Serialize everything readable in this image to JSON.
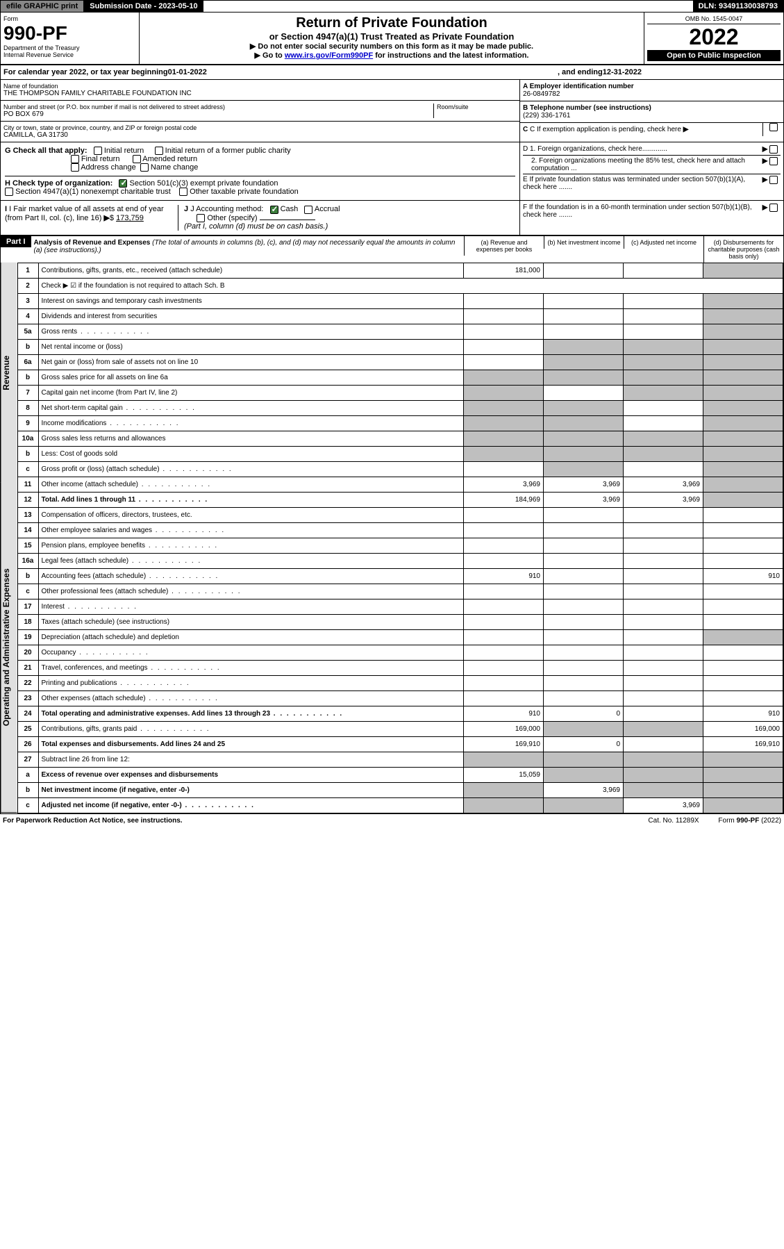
{
  "topbar": {
    "efile": "efile GRAPHIC print",
    "submission": "Submission Date - 2023-05-10",
    "dln": "DLN: 93491130038793"
  },
  "header": {
    "form_label": "Form",
    "form_no": "990-PF",
    "dept": "Department of the Treasury",
    "irs": "Internal Revenue Service",
    "title": "Return of Private Foundation",
    "subtitle": "or Section 4947(a)(1) Trust Treated as Private Foundation",
    "instr1": "▶ Do not enter social security numbers on this form as it may be made public.",
    "instr2_pre": "▶ Go to ",
    "instr2_link": "www.irs.gov/Form990PF",
    "instr2_post": " for instructions and the latest information.",
    "omb": "OMB No. 1545-0047",
    "year": "2022",
    "inspection": "Open to Public Inspection"
  },
  "calendar": {
    "text_pre": "For calendar year 2022, or tax year beginning ",
    "begin": "01-01-2022",
    "mid": ", and ending ",
    "end": "12-31-2022"
  },
  "entity": {
    "name_label": "Name of foundation",
    "name": "THE THOMPSON FAMILY CHARITABLE FOUNDATION INC",
    "addr_label": "Number and street (or P.O. box number if mail is not delivered to street address)",
    "addr": "PO BOX 679",
    "room_label": "Room/suite",
    "city_label": "City or town, state or province, country, and ZIP or foreign postal code",
    "city": "CAMILLA, GA  31730",
    "ein_label": "A Employer identification number",
    "ein": "26-0849782",
    "phone_label": "B Telephone number (see instructions)",
    "phone": "(229) 336-1761",
    "c_label": "C If exemption application is pending, check here",
    "d1_label": "D 1. Foreign organizations, check here.............",
    "d2_label": "2. Foreign organizations meeting the 85% test, check here and attach computation ...",
    "e_label": "E  If private foundation status was terminated under section 507(b)(1)(A), check here .......",
    "f_label": "F  If the foundation is in a 60-month termination under section 507(b)(1)(B), check here .......",
    "g_label": "G Check all that apply:",
    "g_opts": [
      "Initial return",
      "Initial return of a former public charity",
      "Final return",
      "Amended return",
      "Address change",
      "Name change"
    ],
    "h_label": "H Check type of organization:",
    "h_opt1": "Section 501(c)(3) exempt private foundation",
    "h_opt2": "Section 4947(a)(1) nonexempt charitable trust",
    "h_opt3": "Other taxable private foundation",
    "i_label": "I Fair market value of all assets at end of year (from Part II, col. (c), line 16)",
    "i_value": "173,759",
    "j_label": "J Accounting method:",
    "j_cash": "Cash",
    "j_accrual": "Accrual",
    "j_other": "Other (specify)",
    "j_note": "(Part I, column (d) must be on cash basis.)"
  },
  "part1": {
    "label": "Part I",
    "title": "Analysis of Revenue and Expenses",
    "desc": " (The total of amounts in columns (b), (c), and (d) may not necessarily equal the amounts in column (a) (see instructions).)",
    "col_a": "(a)   Revenue and expenses per books",
    "col_b": "(b)   Net investment income",
    "col_c": "(c)   Adjusted net income",
    "col_d": "(d)   Disbursements for charitable purposes (cash basis only)"
  },
  "vert": {
    "revenue": "Revenue",
    "expenses": "Operating and Administrative Expenses"
  },
  "rows": [
    {
      "n": "1",
      "label": "Contributions, gifts, grants, etc., received (attach schedule)",
      "a": "181,000",
      "b": "",
      "c": "",
      "d": "",
      "shade": [
        "d"
      ]
    },
    {
      "n": "2",
      "label": "Check ▶ ☑ if the foundation is not required to attach Sch. B",
      "a": "",
      "b": "",
      "c": "",
      "d": "",
      "nocells": true
    },
    {
      "n": "3",
      "label": "Interest on savings and temporary cash investments",
      "a": "",
      "b": "",
      "c": "",
      "d": "",
      "shade": [
        "d"
      ]
    },
    {
      "n": "4",
      "label": "Dividends and interest from securities",
      "a": "",
      "b": "",
      "c": "",
      "d": "",
      "shade": [
        "d"
      ]
    },
    {
      "n": "5a",
      "label": "Gross rents",
      "a": "",
      "b": "",
      "c": "",
      "d": "",
      "shade": [
        "d"
      ],
      "dots": true
    },
    {
      "n": "b",
      "label": "Net rental income or (loss)",
      "a": "",
      "b": "",
      "c": "",
      "d": "",
      "shade": [
        "b",
        "c",
        "d"
      ]
    },
    {
      "n": "6a",
      "label": "Net gain or (loss) from sale of assets not on line 10",
      "a": "",
      "b": "",
      "c": "",
      "d": "",
      "shade": [
        "b",
        "c",
        "d"
      ]
    },
    {
      "n": "b",
      "label": "Gross sales price for all assets on line 6a",
      "a": "",
      "b": "",
      "c": "",
      "d": "",
      "shade": [
        "a",
        "b",
        "c",
        "d"
      ]
    },
    {
      "n": "7",
      "label": "Capital gain net income (from Part IV, line 2)",
      "a": "",
      "b": "",
      "c": "",
      "d": "",
      "shade": [
        "a",
        "c",
        "d"
      ]
    },
    {
      "n": "8",
      "label": "Net short-term capital gain",
      "a": "",
      "b": "",
      "c": "",
      "d": "",
      "shade": [
        "a",
        "b",
        "d"
      ],
      "dots": true
    },
    {
      "n": "9",
      "label": "Income modifications",
      "a": "",
      "b": "",
      "c": "",
      "d": "",
      "shade": [
        "a",
        "b",
        "d"
      ],
      "dots": true
    },
    {
      "n": "10a",
      "label": "Gross sales less returns and allowances",
      "a": "",
      "b": "",
      "c": "",
      "d": "",
      "shade": [
        "a",
        "b",
        "c",
        "d"
      ]
    },
    {
      "n": "b",
      "label": "Less: Cost of goods sold",
      "a": "",
      "b": "",
      "c": "",
      "d": "",
      "shade": [
        "a",
        "b",
        "c",
        "d"
      ]
    },
    {
      "n": "c",
      "label": "Gross profit or (loss) (attach schedule)",
      "a": "",
      "b": "",
      "c": "",
      "d": "",
      "shade": [
        "b",
        "d"
      ],
      "dots": true
    },
    {
      "n": "11",
      "label": "Other income (attach schedule)",
      "a": "3,969",
      "b": "3,969",
      "c": "3,969",
      "d": "",
      "shade": [
        "d"
      ],
      "dots": true
    },
    {
      "n": "12",
      "label": "Total. Add lines 1 through 11",
      "a": "184,969",
      "b": "3,969",
      "c": "3,969",
      "d": "",
      "shade": [
        "d"
      ],
      "bold": true,
      "dots": true
    },
    {
      "n": "13",
      "label": "Compensation of officers, directors, trustees, etc.",
      "a": "",
      "b": "",
      "c": "",
      "d": ""
    },
    {
      "n": "14",
      "label": "Other employee salaries and wages",
      "a": "",
      "b": "",
      "c": "",
      "d": "",
      "dots": true
    },
    {
      "n": "15",
      "label": "Pension plans, employee benefits",
      "a": "",
      "b": "",
      "c": "",
      "d": "",
      "dots": true
    },
    {
      "n": "16a",
      "label": "Legal fees (attach schedule)",
      "a": "",
      "b": "",
      "c": "",
      "d": "",
      "dots": true
    },
    {
      "n": "b",
      "label": "Accounting fees (attach schedule)",
      "a": "910",
      "b": "",
      "c": "",
      "d": "910",
      "dots": true
    },
    {
      "n": "c",
      "label": "Other professional fees (attach schedule)",
      "a": "",
      "b": "",
      "c": "",
      "d": "",
      "dots": true
    },
    {
      "n": "17",
      "label": "Interest",
      "a": "",
      "b": "",
      "c": "",
      "d": "",
      "dots": true
    },
    {
      "n": "18",
      "label": "Taxes (attach schedule) (see instructions)",
      "a": "",
      "b": "",
      "c": "",
      "d": ""
    },
    {
      "n": "19",
      "label": "Depreciation (attach schedule) and depletion",
      "a": "",
      "b": "",
      "c": "",
      "d": "",
      "shade": [
        "d"
      ]
    },
    {
      "n": "20",
      "label": "Occupancy",
      "a": "",
      "b": "",
      "c": "",
      "d": "",
      "dots": true
    },
    {
      "n": "21",
      "label": "Travel, conferences, and meetings",
      "a": "",
      "b": "",
      "c": "",
      "d": "",
      "dots": true
    },
    {
      "n": "22",
      "label": "Printing and publications",
      "a": "",
      "b": "",
      "c": "",
      "d": "",
      "dots": true
    },
    {
      "n": "23",
      "label": "Other expenses (attach schedule)",
      "a": "",
      "b": "",
      "c": "",
      "d": "",
      "dots": true
    },
    {
      "n": "24",
      "label": "Total operating and administrative expenses. Add lines 13 through 23",
      "a": "910",
      "b": "0",
      "c": "",
      "d": "910",
      "bold": true,
      "dots": true
    },
    {
      "n": "25",
      "label": "Contributions, gifts, grants paid",
      "a": "169,000",
      "b": "",
      "c": "",
      "d": "169,000",
      "shade": [
        "b",
        "c"
      ],
      "dots": true
    },
    {
      "n": "26",
      "label": "Total expenses and disbursements. Add lines 24 and 25",
      "a": "169,910",
      "b": "0",
      "c": "",
      "d": "169,910",
      "bold": true
    },
    {
      "n": "27",
      "label": "Subtract line 26 from line 12:",
      "a": "",
      "b": "",
      "c": "",
      "d": "",
      "shade": [
        "a",
        "b",
        "c",
        "d"
      ]
    },
    {
      "n": "a",
      "label": "Excess of revenue over expenses and disbursements",
      "a": "15,059",
      "b": "",
      "c": "",
      "d": "",
      "shade": [
        "b",
        "c",
        "d"
      ],
      "bold": true
    },
    {
      "n": "b",
      "label": "Net investment income (if negative, enter -0-)",
      "a": "",
      "b": "3,969",
      "c": "",
      "d": "",
      "shade": [
        "a",
        "c",
        "d"
      ],
      "bold": true
    },
    {
      "n": "c",
      "label": "Adjusted net income (if negative, enter -0-)",
      "a": "",
      "b": "",
      "c": "3,969",
      "d": "",
      "shade": [
        "a",
        "b",
        "d"
      ],
      "bold": true,
      "dots": true
    }
  ],
  "footer": {
    "left": "For Paperwork Reduction Act Notice, see instructions.",
    "mid": "Cat. No. 11289X",
    "right": "Form 990-PF (2022)"
  }
}
